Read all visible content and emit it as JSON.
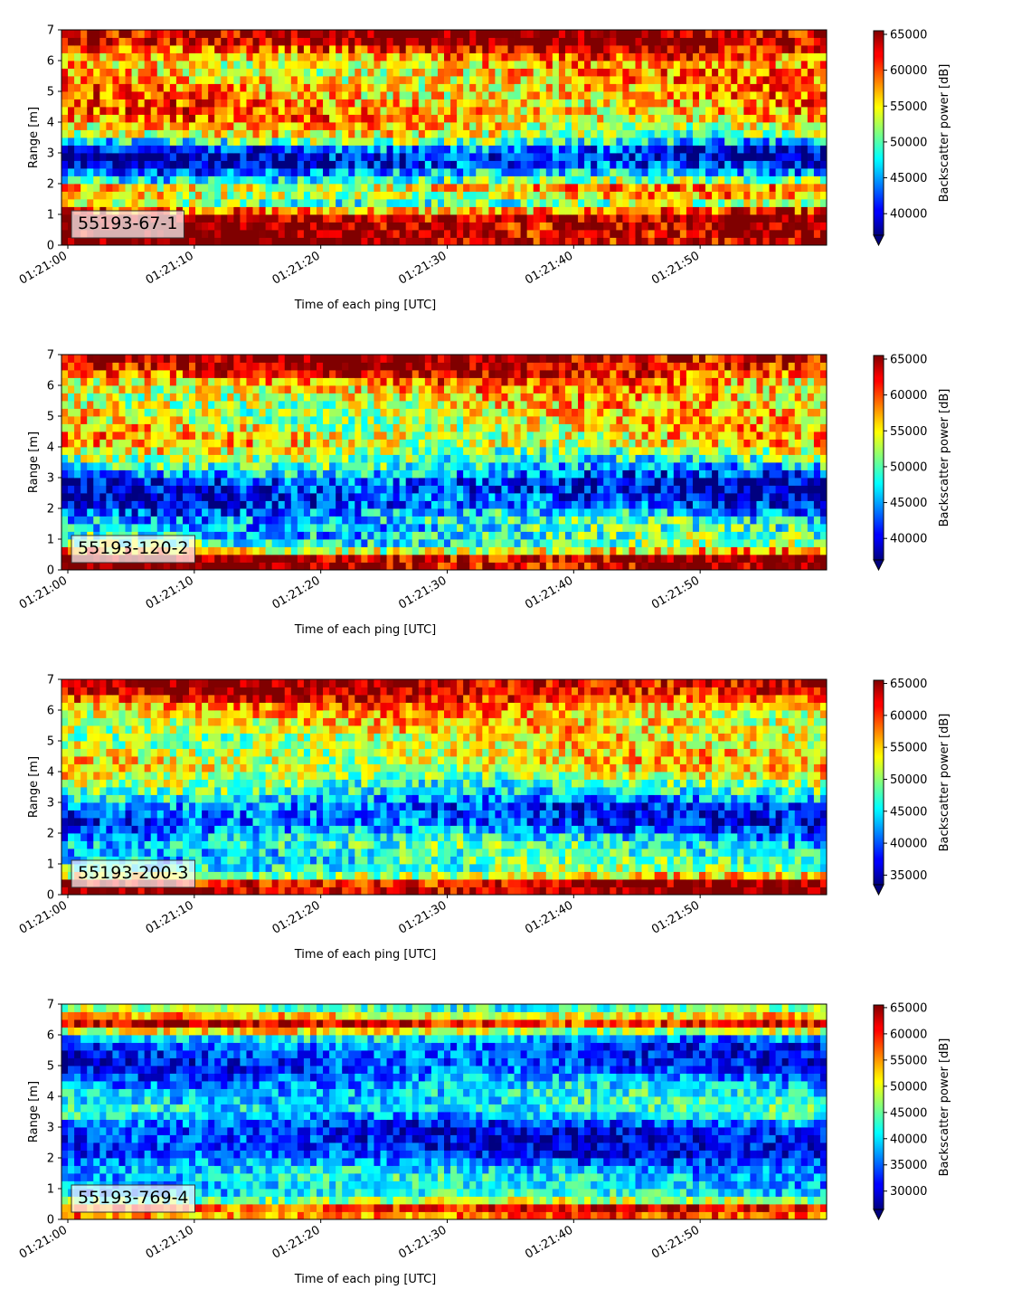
{
  "chart_data": [
    {
      "type": "heatmap",
      "label": "55193-67-1",
      "xlabel": "Time of each ping [UTC]",
      "ylabel": "Range [m]",
      "x_ticks": [
        "01:21:00",
        "01:21:10",
        "01:21:20",
        "01:21:30",
        "01:21:40",
        "01:21:50"
      ],
      "x_range": [
        "01:21:00",
        "01:22:00"
      ],
      "y_ticks": [
        0,
        1,
        2,
        3,
        4,
        5,
        6,
        7
      ],
      "ylim": [
        0,
        7
      ],
      "colorbar": {
        "label": "Backscatter power [dB]",
        "ticks": [
          40000,
          45000,
          50000,
          55000,
          60000,
          65000
        ],
        "min": 37000,
        "max": 65500,
        "extend": "min",
        "colormap": "jet"
      },
      "range_profile": [
        {
          "range": 0.15,
          "value": 65000
        },
        {
          "range": 0.5,
          "value": 65000
        },
        {
          "range": 1.0,
          "value": 65000
        },
        {
          "range": 1.3,
          "value": 50000
        },
        {
          "range": 1.8,
          "value": 58000
        },
        {
          "range": 2.1,
          "value": 50000
        },
        {
          "range": 2.6,
          "value": 41000
        },
        {
          "range": 3.0,
          "value": 39000
        },
        {
          "range": 3.5,
          "value": 52000
        },
        {
          "range": 4.2,
          "value": 58000
        },
        {
          "range": 5.0,
          "value": 57000
        },
        {
          "range": 6.0,
          "value": 56000
        },
        {
          "range": 6.6,
          "value": 65000
        },
        {
          "range": 7.0,
          "value": 65000
        }
      ]
    },
    {
      "type": "heatmap",
      "label": "55193-120-2",
      "xlabel": "Time of each ping [UTC]",
      "ylabel": "Range [m]",
      "x_ticks": [
        "01:21:00",
        "01:21:10",
        "01:21:20",
        "01:21:30",
        "01:21:40",
        "01:21:50"
      ],
      "x_range": [
        "01:21:00",
        "01:22:00"
      ],
      "y_ticks": [
        0,
        1,
        2,
        3,
        4,
        5,
        6,
        7
      ],
      "ylim": [
        0,
        7
      ],
      "colorbar": {
        "label": "Backscatter power [dB]",
        "ticks": [
          40000,
          45000,
          50000,
          55000,
          60000,
          65000
        ],
        "min": 37000,
        "max": 65500,
        "extend": "min",
        "colormap": "jet"
      },
      "range_profile": [
        {
          "range": 0.15,
          "value": 65000
        },
        {
          "range": 0.45,
          "value": 65000
        },
        {
          "range": 0.7,
          "value": 51000
        },
        {
          "range": 1.2,
          "value": 48000
        },
        {
          "range": 1.7,
          "value": 47000
        },
        {
          "range": 2.2,
          "value": 41000
        },
        {
          "range": 2.8,
          "value": 40000
        },
        {
          "range": 3.4,
          "value": 48000
        },
        {
          "range": 4.2,
          "value": 56000
        },
        {
          "range": 5.0,
          "value": 54000
        },
        {
          "range": 6.0,
          "value": 56000
        },
        {
          "range": 6.6,
          "value": 64000
        },
        {
          "range": 7.0,
          "value": 65000
        }
      ]
    },
    {
      "type": "heatmap",
      "label": "55193-200-3",
      "xlabel": "Time of each ping [UTC]",
      "ylabel": "Range [m]",
      "x_ticks": [
        "01:21:00",
        "01:21:10",
        "01:21:20",
        "01:21:30",
        "01:21:40",
        "01:21:50"
      ],
      "x_range": [
        "01:21:00",
        "01:22:00"
      ],
      "y_ticks": [
        0,
        1,
        2,
        3,
        4,
        5,
        6,
        7
      ],
      "ylim": [
        0,
        7
      ],
      "colorbar": {
        "label": "Backscatter power [dB]",
        "ticks": [
          35000,
          40000,
          45000,
          50000,
          55000,
          60000,
          65000
        ],
        "min": 33500,
        "max": 65500,
        "extend": "min",
        "colormap": "jet"
      },
      "range_profile": [
        {
          "range": 0.15,
          "value": 65000
        },
        {
          "range": 0.4,
          "value": 63000
        },
        {
          "range": 0.7,
          "value": 49000
        },
        {
          "range": 1.2,
          "value": 46000
        },
        {
          "range": 1.7,
          "value": 46000
        },
        {
          "range": 2.2,
          "value": 40000
        },
        {
          "range": 2.8,
          "value": 39000
        },
        {
          "range": 3.4,
          "value": 47000
        },
        {
          "range": 4.2,
          "value": 54000
        },
        {
          "range": 5.0,
          "value": 52000
        },
        {
          "range": 6.0,
          "value": 55000
        },
        {
          "range": 6.6,
          "value": 63000
        },
        {
          "range": 7.0,
          "value": 65000
        }
      ]
    },
    {
      "type": "heatmap",
      "label": "55193-769-4",
      "xlabel": "Time of each ping [UTC]",
      "ylabel": "Range [m]",
      "x_ticks": [
        "01:21:00",
        "01:21:10",
        "01:21:20",
        "01:21:30",
        "01:21:40",
        "01:21:50"
      ],
      "x_range": [
        "01:21:00",
        "01:22:00"
      ],
      "y_ticks": [
        0,
        1,
        2,
        3,
        4,
        5,
        6,
        7
      ],
      "ylim": [
        0,
        7
      ],
      "colorbar": {
        "label": "Backscatter power [dB]",
        "ticks": [
          30000,
          35000,
          40000,
          45000,
          50000,
          55000,
          60000,
          65000
        ],
        "min": 26500,
        "max": 65500,
        "extend": "min",
        "colormap": "jet"
      },
      "range_profile": [
        {
          "range": 0.1,
          "value": 55000
        },
        {
          "range": 0.3,
          "value": 65000
        },
        {
          "range": 0.5,
          "value": 50000
        },
        {
          "range": 0.9,
          "value": 40000
        },
        {
          "range": 1.5,
          "value": 40000
        },
        {
          "range": 2.2,
          "value": 32000
        },
        {
          "range": 3.0,
          "value": 32000
        },
        {
          "range": 3.5,
          "value": 42000
        },
        {
          "range": 4.2,
          "value": 40000
        },
        {
          "range": 5.0,
          "value": 32000
        },
        {
          "range": 5.8,
          "value": 35000
        },
        {
          "range": 6.4,
          "value": 62000
        },
        {
          "range": 6.8,
          "value": 45000
        },
        {
          "range": 7.0,
          "value": 45000
        }
      ]
    }
  ]
}
